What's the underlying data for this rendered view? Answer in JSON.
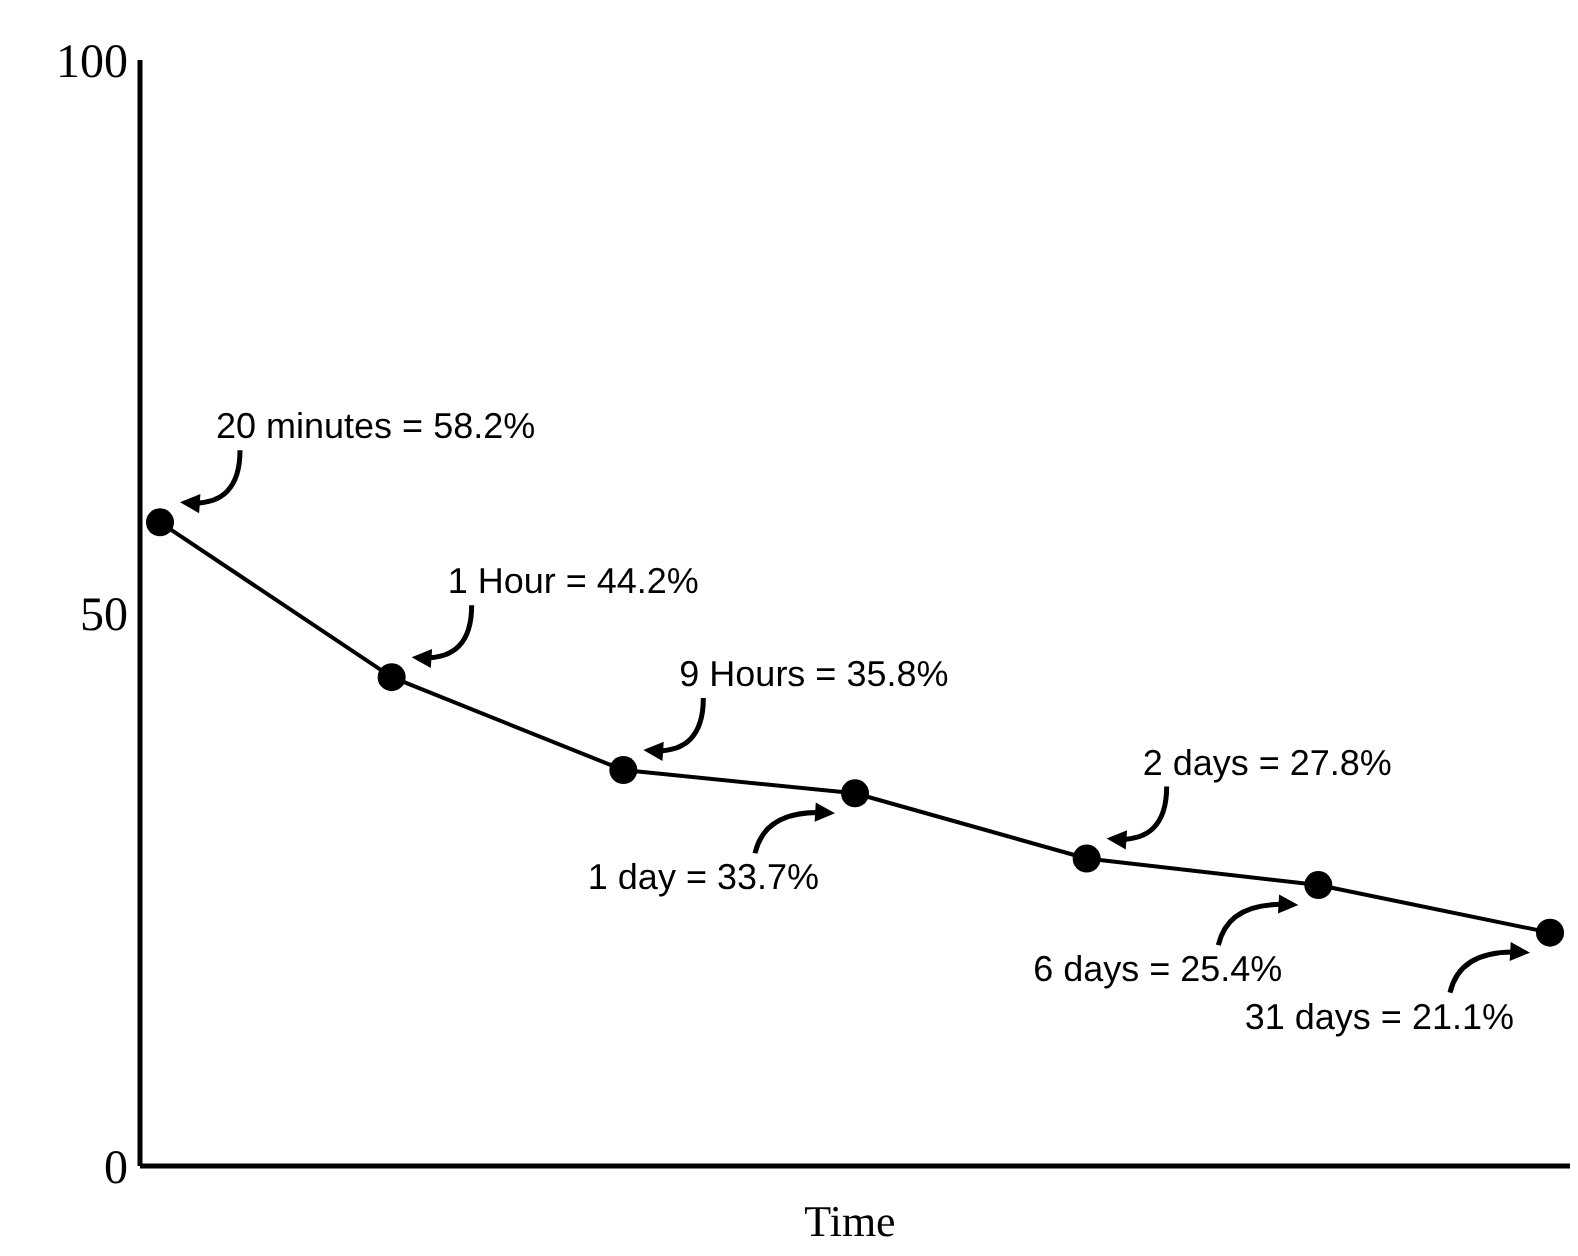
{
  "chart_data": {
    "type": "line",
    "xlabel": "Time",
    "categories": [
      null,
      null,
      null,
      null,
      null,
      null,
      null
    ],
    "values": [
      58.2,
      44.2,
      35.8,
      33.7,
      27.8,
      25.4,
      21.1
    ],
    "value_labels": [
      "20 minutes = 58.2%",
      "1 Hour = 44.2%",
      "9 Hours = 35.8%",
      "1 day = 33.7%",
      "2 days = 27.8%",
      "6 days = 25.4%",
      "31 days = 21.1%"
    ],
    "color": "#000000",
    "marker": "circle",
    "line_style": "solid",
    "ylim": [
      0,
      100
    ],
    "yticks": [
      0,
      50,
      100
    ],
    "grid": false
  }
}
